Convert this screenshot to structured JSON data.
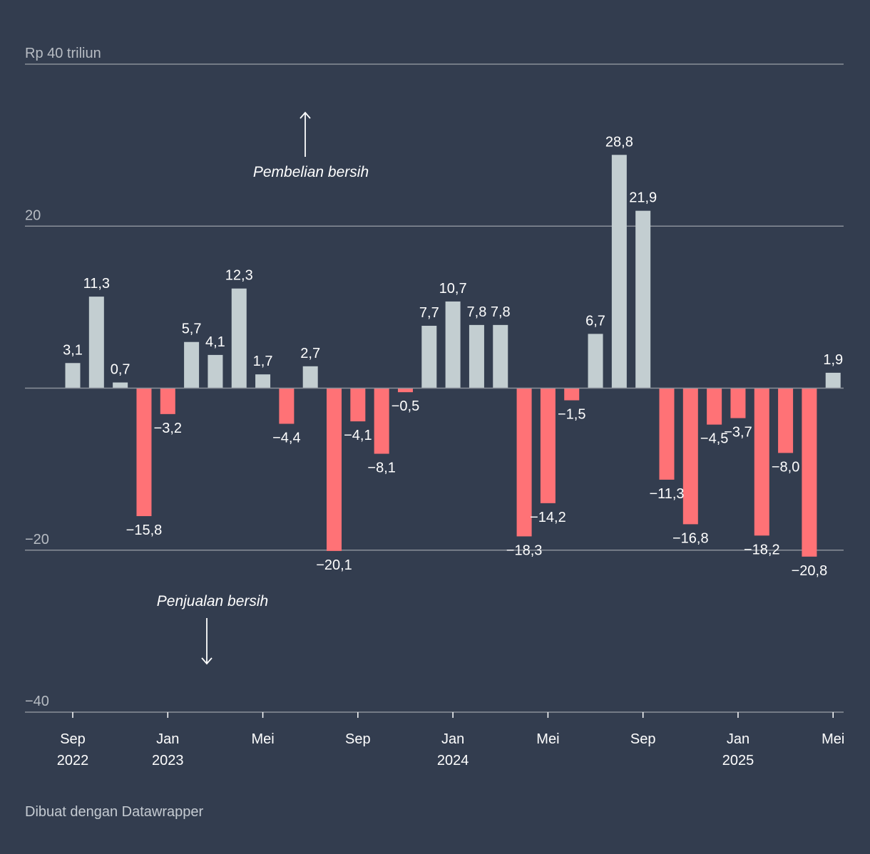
{
  "chart_data": {
    "type": "bar",
    "unit_label": "Rp 40 triliun",
    "y_ticks": [
      {
        "value": 40,
        "label": "Rp 40 triliun"
      },
      {
        "value": 20,
        "label": "20"
      },
      {
        "value": -20,
        "label": "−20"
      },
      {
        "value": -40,
        "label": "−40"
      }
    ],
    "ylim": [
      -40,
      40
    ],
    "grid": true,
    "values": [
      3.1,
      11.3,
      0.7,
      -15.8,
      -3.2,
      5.7,
      4.1,
      12.3,
      1.7,
      -4.4,
      2.7,
      -20.1,
      -4.1,
      -8.1,
      -0.5,
      7.7,
      10.7,
      7.8,
      7.8,
      -18.3,
      -14.2,
      -1.5,
      6.7,
      28.8,
      21.9,
      -11.3,
      -16.8,
      -4.5,
      -3.7,
      -18.2,
      -8.0,
      -20.8,
      1.9
    ],
    "value_labels": [
      "3,1",
      "11,3",
      "0,7",
      "−15,8",
      "−3,2",
      "5,7",
      "4,1",
      "12,3",
      "1,7",
      "−4,4",
      "2,7",
      "−20,1",
      "−4,1",
      "−8,1",
      "−0,5",
      "7,7",
      "10,7",
      "7,8",
      "7,8",
      "−18,3",
      "−14,2",
      "−1,5",
      "6,7",
      "28,8",
      "21,9",
      "−11,3",
      "−16,8",
      "−4,5",
      "−3,7",
      "−18,2",
      "−8,0",
      "−20,8",
      "1,9"
    ],
    "x_start": "Sep 2022",
    "x_end": "Mei 2025",
    "x_ticks": [
      {
        "index": 0,
        "month": "Sep",
        "year": "2022"
      },
      {
        "index": 4,
        "month": "Jan",
        "year": "2023"
      },
      {
        "index": 8,
        "month": "Mei",
        "year": ""
      },
      {
        "index": 12,
        "month": "Sep",
        "year": ""
      },
      {
        "index": 16,
        "month": "Jan",
        "year": "2024"
      },
      {
        "index": 20,
        "month": "Mei",
        "year": ""
      },
      {
        "index": 24,
        "month": "Sep",
        "year": ""
      },
      {
        "index": 28,
        "month": "Jan",
        "year": "2025"
      },
      {
        "index": 32,
        "month": "Mei",
        "year": ""
      }
    ],
    "annotations": {
      "positive": "Pembelian bersih",
      "negative": "Penjualan bersih"
    },
    "colors": {
      "positive": "#c3ced1",
      "negative": "#ff7276",
      "background": "#333d4f",
      "grid": "#8a9099",
      "text": "#ffffff",
      "axis_text": "#b7bcc3"
    }
  },
  "footer": {
    "credit": "Dibuat dengan Datawrapper"
  }
}
